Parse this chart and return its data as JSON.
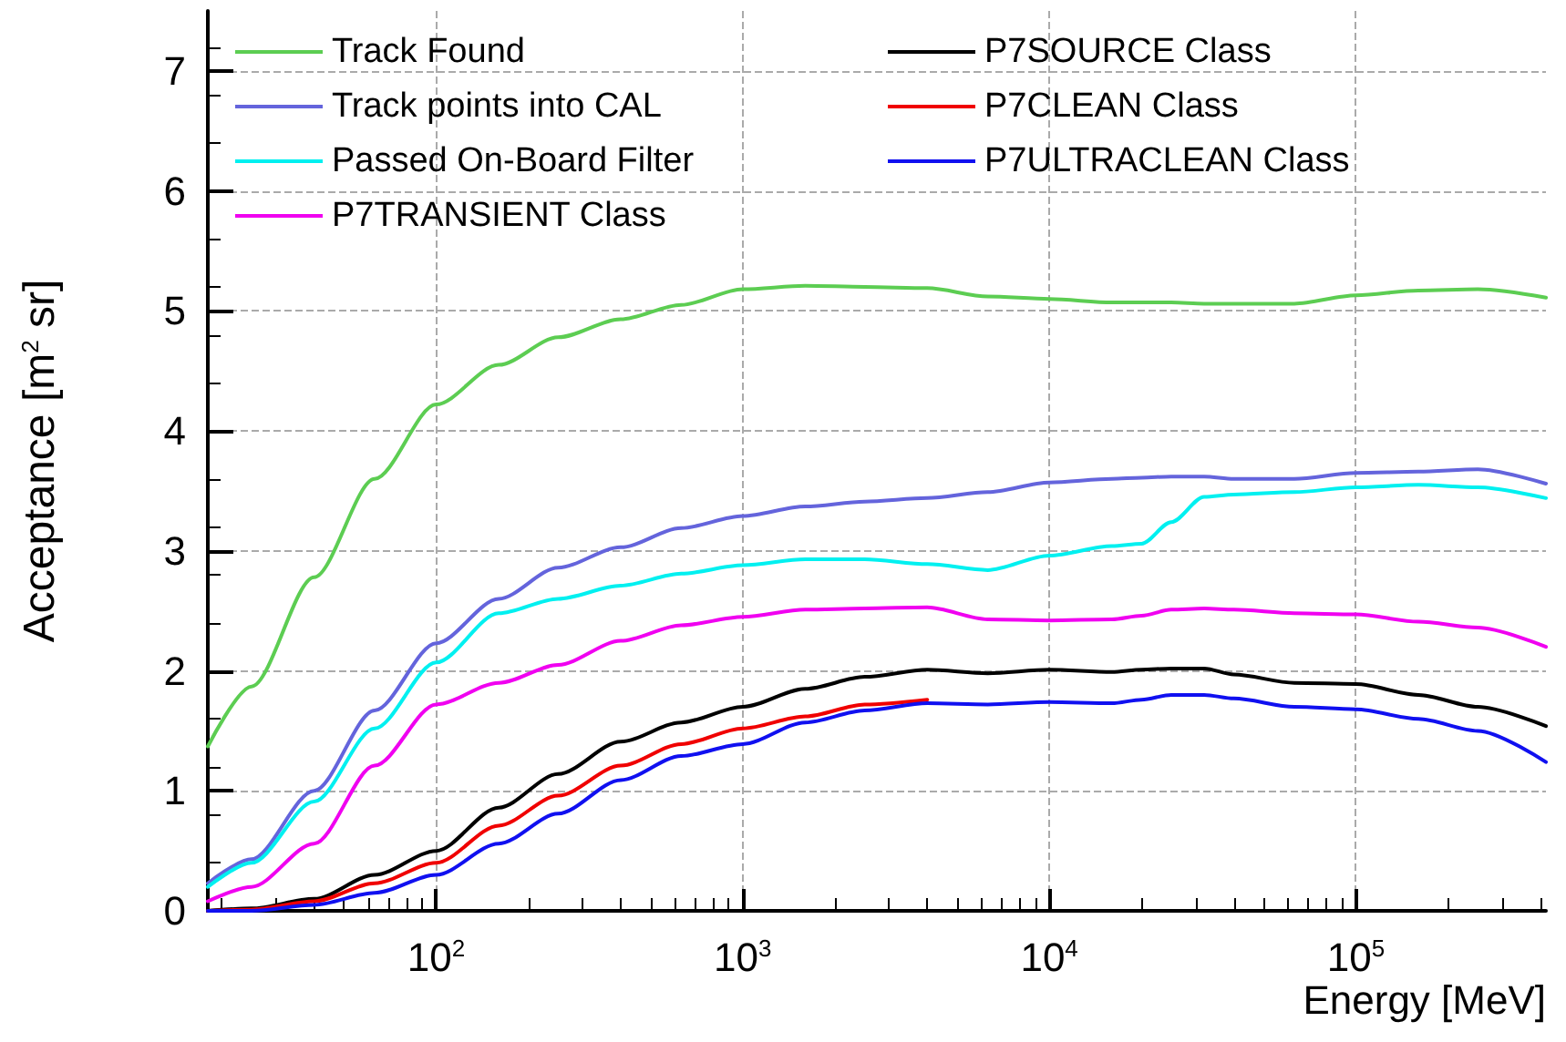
{
  "chart_data": {
    "type": "line",
    "xlabel": "Energy [MeV]",
    "ylabel": "Acceptance [m$^{2}$ sr]",
    "x": [
      18,
      25,
      40,
      63,
      100,
      160,
      250,
      400,
      630,
      1000,
      1600,
      2500,
      4000,
      6300,
      10000,
      16000,
      20000,
      25000,
      32000,
      40000,
      63000,
      100000,
      160000,
      250000,
      417000
    ],
    "log": "x",
    "xlim": [
      18,
      417000
    ],
    "xticks": [
      {
        "value": 100,
        "label": "10$^{2}$"
      },
      {
        "value": 1000,
        "label": "10$^{3}$"
      },
      {
        "value": 10000,
        "label": "10$^{4}$"
      },
      {
        "value": 100000,
        "label": "10$^{5}$"
      }
    ],
    "ylim": [
      0,
      7.5
    ],
    "yticks": [
      0,
      1,
      2,
      3,
      4,
      5,
      6,
      7
    ],
    "grid": true,
    "legend": "top left",
    "marker": "none",
    "line_style": "solid",
    "series": [
      {
        "name": "Track Found",
        "color": "#5ccd52",
        "values": [
          1.37,
          1.87,
          2.78,
          3.6,
          4.22,
          4.55,
          4.78,
          4.93,
          5.05,
          5.18,
          5.21,
          5.2,
          5.19,
          5.12,
          5.1,
          5.07,
          5.07,
          5.07,
          5.06,
          5.06,
          5.06,
          5.13,
          5.17,
          5.18,
          5.11
        ]
      },
      {
        "name": "Track points into CAL",
        "color": "#6464dc",
        "values": [
          0.23,
          0.43,
          1.0,
          1.67,
          2.23,
          2.6,
          2.86,
          3.03,
          3.19,
          3.29,
          3.37,
          3.41,
          3.44,
          3.49,
          3.57,
          3.6,
          3.61,
          3.62,
          3.62,
          3.6,
          3.6,
          3.65,
          3.66,
          3.68,
          3.56
        ]
      },
      {
        "name": "Passed On-Board Filter",
        "color": "#00f0f0",
        "values": [
          0.2,
          0.4,
          0.91,
          1.52,
          2.07,
          2.48,
          2.6,
          2.71,
          2.81,
          2.88,
          2.93,
          2.93,
          2.89,
          2.84,
          2.96,
          3.04,
          3.06,
          3.24,
          3.45,
          3.47,
          3.49,
          3.53,
          3.55,
          3.53,
          3.44
        ]
      },
      {
        "name": "P7TRANSIENT Class",
        "color": "#f000f0",
        "values": [
          0.08,
          0.2,
          0.56,
          1.21,
          1.72,
          1.9,
          2.05,
          2.25,
          2.38,
          2.45,
          2.51,
          2.52,
          2.53,
          2.43,
          2.42,
          2.43,
          2.46,
          2.51,
          2.52,
          2.51,
          2.48,
          2.47,
          2.41,
          2.36,
          2.2
        ]
      },
      {
        "name": "P7SOURCE Class",
        "color": "#000000",
        "values": [
          0,
          0.02,
          0.1,
          0.3,
          0.5,
          0.86,
          1.14,
          1.41,
          1.57,
          1.7,
          1.85,
          1.95,
          2.01,
          1.98,
          2.01,
          1.99,
          2.01,
          2.02,
          2.02,
          1.97,
          1.9,
          1.89,
          1.8,
          1.7,
          1.54
        ]
      },
      {
        "name": "P7CLEAN Class",
        "color": "#f00000",
        "values": [
          0,
          0.01,
          0.08,
          0.23,
          0.4,
          0.71,
          0.96,
          1.21,
          1.39,
          1.52,
          1.62,
          1.72,
          1.76,
          null,
          null,
          null,
          null,
          null,
          null,
          null,
          null,
          null,
          null,
          null,
          null
        ]
      },
      {
        "name": "P7ULTRACLEAN Class",
        "color": "#1010f0",
        "values": [
          0,
          0,
          0.05,
          0.15,
          0.3,
          0.56,
          0.81,
          1.09,
          1.29,
          1.39,
          1.57,
          1.67,
          1.73,
          1.72,
          1.74,
          1.73,
          1.76,
          1.8,
          1.8,
          1.77,
          1.7,
          1.68,
          1.6,
          1.5,
          1.24
        ]
      }
    ]
  }
}
